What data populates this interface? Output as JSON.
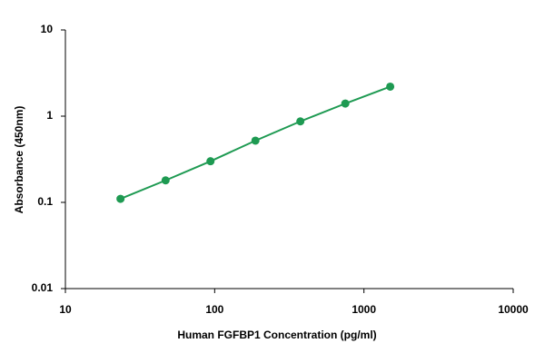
{
  "chart_data": {
    "type": "scatter",
    "xlabel": "Human FGFBP1 Concentration (pg/ml)",
    "ylabel": "Absorbance (450nm)",
    "x": [
      23.4,
      46.9,
      93.75,
      187.5,
      375,
      750,
      1500
    ],
    "series": [
      {
        "color": "#1e9a52",
        "values": [
          0.11,
          0.18,
          0.3,
          0.52,
          0.87,
          1.4,
          2.2
        ]
      }
    ],
    "xlim": [
      10,
      10000
    ],
    "xticks": [
      10,
      100,
      1000,
      10000
    ],
    "ylim": [
      0.01,
      10
    ],
    "yticks": [
      0.01,
      0.1,
      1,
      10
    ],
    "xscale": "log",
    "yscale": "log",
    "grid": false
  }
}
